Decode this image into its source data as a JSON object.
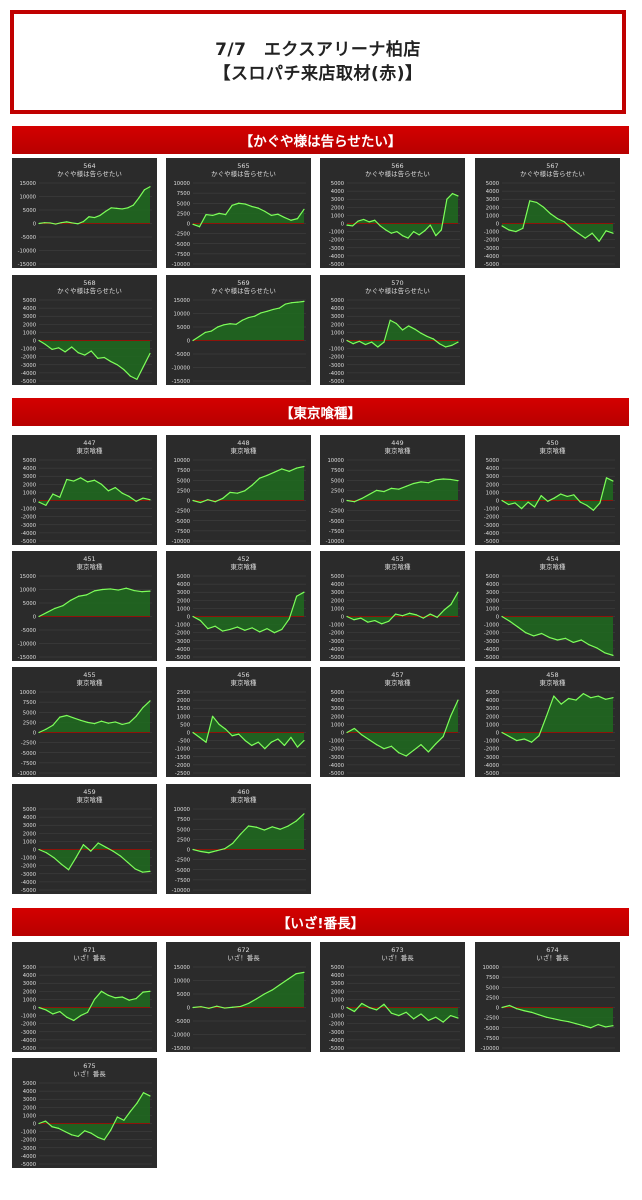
{
  "header": {
    "line1": "7/7　エクスアリーナ柏店",
    "line2": "【スロパチ来店取材(赤)】"
  },
  "colors": {
    "accent_red": "#c00000",
    "panel_bg": "#2b2b2b",
    "line_green": "#7dff5a",
    "fill_green": "#1f6b1f",
    "zero_line_red": "#b00000",
    "grid": "#444444",
    "text": "#dddddd"
  },
  "sections": [
    {
      "title": "【かぐや様は告らせたい】"
    },
    {
      "title": "【東京喰種】"
    },
    {
      "title": "【いざ!番長】"
    }
  ],
  "chart_data": [
    {
      "type": "area",
      "number": "564",
      "machine": "かぐや様は告らせたい",
      "ylim": [
        -15000,
        15000
      ],
      "yticks": [
        "15000",
        "10000",
        "5000",
        "0",
        "-5000",
        "-10000",
        "-15000"
      ],
      "values": [
        0,
        300,
        200,
        -200,
        300,
        600,
        200,
        -100,
        700,
        2500,
        2200,
        3000,
        4500,
        5800,
        5600,
        5400,
        5800,
        6800,
        9500,
        12500,
        13600
      ]
    },
    {
      "type": "area",
      "number": "565",
      "machine": "かぐや様は告らせたい",
      "ylim": [
        -10000,
        10000
      ],
      "yticks": [
        "10000",
        "7500",
        "5000",
        "2500",
        "0",
        "-2500",
        "-5000",
        "-7500",
        "-10000"
      ],
      "values": [
        -200,
        -800,
        2200,
        2000,
        2500,
        2200,
        4500,
        5000,
        4800,
        4200,
        3800,
        3000,
        2000,
        2300,
        1500,
        800,
        1200,
        3500
      ]
    },
    {
      "type": "area",
      "number": "566",
      "machine": "かぐや様は告らせたい",
      "ylim": [
        -5000,
        5000
      ],
      "yticks": [
        "5000",
        "4000",
        "3000",
        "2000",
        "1000",
        "0",
        "-1000",
        "-2000",
        "-3000",
        "-4000",
        "-5000"
      ],
      "values": [
        -200,
        -300,
        300,
        500,
        200,
        400,
        -300,
        -800,
        -1200,
        -1000,
        -1500,
        -1800,
        -1000,
        -1400,
        -900,
        -200,
        -1500,
        -800,
        3000,
        3700,
        3400
      ]
    },
    {
      "type": "area",
      "number": "567",
      "machine": "かぐや様は告らせたい",
      "ylim": [
        -5000,
        5000
      ],
      "yticks": [
        "5000",
        "4000",
        "3000",
        "2000",
        "1000",
        "0",
        "-1000",
        "-2000",
        "-3000",
        "-4000",
        "-5000"
      ],
      "values": [
        -300,
        -800,
        -1000,
        -600,
        2800,
        2600,
        2000,
        1200,
        600,
        200,
        -600,
        -1200,
        -1800,
        -1200,
        -2200,
        -900,
        -1200
      ]
    },
    {
      "type": "area",
      "number": "568",
      "machine": "かぐや様は告らせたい",
      "ylim": [
        -5000,
        5000
      ],
      "yticks": [
        "5000",
        "4000",
        "3000",
        "2000",
        "1000",
        "0",
        "-1000",
        "-2000",
        "-3000",
        "-4000",
        "-5000"
      ],
      "values": [
        0,
        -500,
        -1100,
        -900,
        -1400,
        -800,
        -1500,
        -1800,
        -1300,
        -2200,
        -2100,
        -2600,
        -3000,
        -3600,
        -4400,
        -4800,
        -3200,
        -1600
      ]
    },
    {
      "type": "area",
      "number": "569",
      "machine": "かぐや様は告らせたい",
      "ylim": [
        -15000,
        15000
      ],
      "yticks": [
        "15000",
        "10000",
        "5000",
        "0",
        "-5000",
        "-10000",
        "-15000"
      ],
      "values": [
        0,
        1500,
        3000,
        3500,
        5000,
        5800,
        6200,
        6000,
        7500,
        8500,
        9000,
        10200,
        10800,
        11500,
        12000,
        13500,
        14000,
        14200,
        14500
      ]
    },
    {
      "type": "area",
      "number": "570",
      "machine": "かぐや様は告らせたい",
      "ylim": [
        -5000,
        5000
      ],
      "yticks": [
        "5000",
        "4000",
        "3000",
        "2000",
        "1000",
        "0",
        "-1000",
        "-2000",
        "-3000",
        "-4000",
        "-5000"
      ],
      "values": [
        0,
        -400,
        -100,
        -500,
        -200,
        -800,
        -200,
        2500,
        2100,
        1300,
        1800,
        1400,
        900,
        500,
        200,
        -400,
        -800,
        -600,
        -200
      ]
    },
    {
      "type": "area",
      "number": "447",
      "machine": "東京喰種",
      "ylim": [
        -5000,
        5000
      ],
      "yticks": [
        "5000",
        "4000",
        "3000",
        "2000",
        "1000",
        "0",
        "-1000",
        "-2000",
        "-3000",
        "-4000",
        "-5000"
      ],
      "values": [
        -200,
        -600,
        800,
        400,
        2600,
        2400,
        2800,
        2300,
        2500,
        2000,
        1200,
        1600,
        900,
        500,
        -100,
        300,
        100
      ]
    },
    {
      "type": "area",
      "number": "448",
      "machine": "東京喰種",
      "ylim": [
        -10000,
        10000
      ],
      "yticks": [
        "10000",
        "7500",
        "5000",
        "2500",
        "0",
        "-2500",
        "-5000",
        "-7500",
        "-10000"
      ],
      "values": [
        0,
        -500,
        200,
        -300,
        500,
        2000,
        1800,
        2400,
        3800,
        5500,
        6200,
        7000,
        7800,
        7200,
        8000,
        8400
      ]
    },
    {
      "type": "area",
      "number": "449",
      "machine": "東京喰種",
      "ylim": [
        -10000,
        10000
      ],
      "yticks": [
        "10000",
        "7500",
        "5000",
        "2500",
        "0",
        "-2500",
        "-5000",
        "-7500",
        "-10000"
      ],
      "values": [
        0,
        -300,
        500,
        1500,
        2500,
        2200,
        3000,
        2800,
        3500,
        4200,
        4600,
        4400,
        5100,
        5300,
        5200,
        4900
      ]
    },
    {
      "type": "area",
      "number": "450",
      "machine": "東京喰種",
      "ylim": [
        -5000,
        5000
      ],
      "yticks": [
        "5000",
        "4000",
        "3000",
        "2000",
        "1000",
        "0",
        "-1000",
        "-2000",
        "-3000",
        "-4000",
        "-5000"
      ],
      "values": [
        0,
        -500,
        -300,
        -1000,
        -200,
        -800,
        600,
        -100,
        300,
        800,
        500,
        700,
        -200,
        -600,
        -1200,
        -300,
        2800,
        2400
      ]
    },
    {
      "type": "area",
      "number": "451",
      "machine": "東京喰種",
      "ylim": [
        -15000,
        15000
      ],
      "yticks": [
        "15000",
        "10000",
        "5000",
        "0",
        "-5000",
        "-10000",
        "-15000"
      ],
      "values": [
        0,
        1500,
        3000,
        4000,
        6000,
        7500,
        8000,
        9500,
        10000,
        10200,
        9800,
        10500,
        9600,
        9200,
        9400
      ]
    },
    {
      "type": "area",
      "number": "452",
      "machine": "東京喰種",
      "ylim": [
        -5000,
        5000
      ],
      "yticks": [
        "5000",
        "4000",
        "3000",
        "2000",
        "1000",
        "0",
        "-1000",
        "-2000",
        "-3000",
        "-4000",
        "-5000"
      ],
      "values": [
        0,
        -500,
        -1500,
        -1200,
        -1800,
        -1600,
        -1300,
        -1700,
        -1400,
        -1900,
        -1500,
        -2000,
        -1600,
        -300,
        2500,
        3000
      ]
    },
    {
      "type": "area",
      "number": "453",
      "machine": "東京喰種",
      "ylim": [
        -5000,
        5000
      ],
      "yticks": [
        "5000",
        "4000",
        "3000",
        "2000",
        "1000",
        "0",
        "-1000",
        "-2000",
        "-3000",
        "-4000",
        "-5000"
      ],
      "values": [
        0,
        -400,
        -200,
        -700,
        -500,
        -900,
        -600,
        300,
        100,
        400,
        200,
        -200,
        300,
        -100,
        800,
        1500,
        3000
      ]
    },
    {
      "type": "area",
      "number": "454",
      "machine": "東京喰種",
      "ylim": [
        -5000,
        5000
      ],
      "yticks": [
        "5000",
        "4000",
        "3000",
        "2000",
        "1000",
        "0",
        "-1000",
        "-2000",
        "-3000",
        "-4000",
        "-5000"
      ],
      "values": [
        0,
        -600,
        -1300,
        -2000,
        -2400,
        -2100,
        -2600,
        -2900,
        -2700,
        -3200,
        -2900,
        -3500,
        -3900,
        -4500,
        -4800
      ]
    },
    {
      "type": "area",
      "number": "455",
      "machine": "東京喰種",
      "ylim": [
        -10000,
        10000
      ],
      "yticks": [
        "10000",
        "7500",
        "5000",
        "2500",
        "0",
        "-2500",
        "-5000",
        "-7500",
        "-10000"
      ],
      "values": [
        0,
        800,
        1800,
        3800,
        4200,
        3600,
        3000,
        2500,
        2200,
        2800,
        2300,
        2600,
        2000,
        2400,
        4000,
        6200,
        7800
      ]
    },
    {
      "type": "area",
      "number": "456",
      "machine": "東京喰種",
      "ylim": [
        -2500,
        2500
      ],
      "yticks": [
        "2500",
        "2000",
        "1500",
        "1000",
        "500",
        "0",
        "-500",
        "-1000",
        "-1500",
        "-2000",
        "-2500"
      ],
      "values": [
        0,
        -300,
        -600,
        1000,
        500,
        200,
        -200,
        -100,
        -500,
        -800,
        -600,
        -1000,
        -600,
        -400,
        -800,
        -300,
        -900,
        -500
      ]
    },
    {
      "type": "area",
      "number": "457",
      "machine": "東京喰種",
      "ylim": [
        -5000,
        5000
      ],
      "yticks": [
        "5000",
        "4000",
        "3000",
        "2000",
        "1000",
        "0",
        "-1000",
        "-2000",
        "-3000",
        "-4000",
        "-5000"
      ],
      "values": [
        0,
        500,
        -300,
        -900,
        -1500,
        -2000,
        -1700,
        -2500,
        -2900,
        -2200,
        -1500,
        -2400,
        -1400,
        -500,
        2000,
        4000
      ]
    },
    {
      "type": "area",
      "number": "458",
      "machine": "東京喰種",
      "ylim": [
        -5000,
        5000
      ],
      "yticks": [
        "5000",
        "4000",
        "3000",
        "2000",
        "1000",
        "0",
        "-1000",
        "-2000",
        "-3000",
        "-4000",
        "-5000"
      ],
      "values": [
        0,
        -500,
        -1000,
        -800,
        -1200,
        -400,
        2000,
        4500,
        3500,
        4200,
        4000,
        4800,
        4300,
        4500,
        4100,
        4300
      ]
    },
    {
      "type": "area",
      "number": "459",
      "machine": "東京喰種",
      "ylim": [
        -5000,
        5000
      ],
      "yticks": [
        "5000",
        "4000",
        "3000",
        "2000",
        "1000",
        "0",
        "-1000",
        "-2000",
        "-3000",
        "-4000",
        "-5000"
      ],
      "values": [
        0,
        -400,
        -1000,
        -1800,
        -2500,
        -1000,
        600,
        -200,
        800,
        300,
        -200,
        -800,
        -1600,
        -2400,
        -2800,
        -2700
      ]
    },
    {
      "type": "area",
      "number": "460",
      "machine": "東京喰種",
      "ylim": [
        -10000,
        10000
      ],
      "yticks": [
        "10000",
        "7500",
        "5000",
        "2500",
        "0",
        "-2500",
        "-5000",
        "-7500",
        "-10000"
      ],
      "values": [
        0,
        -500,
        -800,
        -300,
        200,
        1500,
        3800,
        5800,
        5500,
        4800,
        5600,
        5000,
        5800,
        7000,
        8800
      ]
    },
    {
      "type": "area",
      "number": "671",
      "machine": "いざ！番長",
      "ylim": [
        -5000,
        5000
      ],
      "yticks": [
        "5000",
        "4000",
        "3000",
        "2000",
        "1000",
        "0",
        "-1000",
        "-2000",
        "-3000",
        "-4000",
        "-5000"
      ],
      "values": [
        0,
        -300,
        -800,
        -500,
        -1200,
        -1600,
        -1000,
        -600,
        1000,
        2000,
        1500,
        1200,
        1300,
        900,
        1100,
        1900,
        2000
      ]
    },
    {
      "type": "area",
      "number": "672",
      "machine": "いざ！番長",
      "ylim": [
        -15000,
        15000
      ],
      "yticks": [
        "15000",
        "10000",
        "5000",
        "0",
        "-5000",
        "-10000",
        "-15000"
      ],
      "values": [
        0,
        300,
        -300,
        500,
        -200,
        100,
        400,
        1500,
        3200,
        5000,
        6500,
        8500,
        10500,
        12500,
        13000
      ]
    },
    {
      "type": "area",
      "number": "673",
      "machine": "いざ！番長",
      "ylim": [
        -5000,
        5000
      ],
      "yticks": [
        "5000",
        "4000",
        "3000",
        "2000",
        "1000",
        "0",
        "-1000",
        "-2000",
        "-3000",
        "-4000",
        "-5000"
      ],
      "values": [
        0,
        -500,
        500,
        0,
        -300,
        400,
        -700,
        -1000,
        -600,
        -1400,
        -800,
        -1600,
        -1200,
        -1800,
        -1000,
        -1300
      ]
    },
    {
      "type": "area",
      "number": "674",
      "machine": "いざ！番長",
      "ylim": [
        -10000,
        10000
      ],
      "yticks": [
        "10000",
        "7500",
        "5000",
        "2500",
        "0",
        "-2500",
        "-5000",
        "-7500",
        "-10000"
      ],
      "values": [
        0,
        500,
        -300,
        -800,
        -1200,
        -1800,
        -2400,
        -2800,
        -3200,
        -3500,
        -4000,
        -4500,
        -5000,
        -4200,
        -4800,
        -4500
      ]
    },
    {
      "type": "area",
      "number": "675",
      "machine": "いざ！番長",
      "ylim": [
        -5000,
        5000
      ],
      "yticks": [
        "5000",
        "4000",
        "3000",
        "2000",
        "1000",
        "0",
        "-1000",
        "-2000",
        "-3000",
        "-4000",
        "-5000"
      ],
      "values": [
        0,
        300,
        -400,
        -600,
        -1000,
        -1400,
        -1600,
        -900,
        -1200,
        -1700,
        -2000,
        -800,
        800,
        400,
        1500,
        2500,
        3800,
        3400
      ]
    }
  ]
}
